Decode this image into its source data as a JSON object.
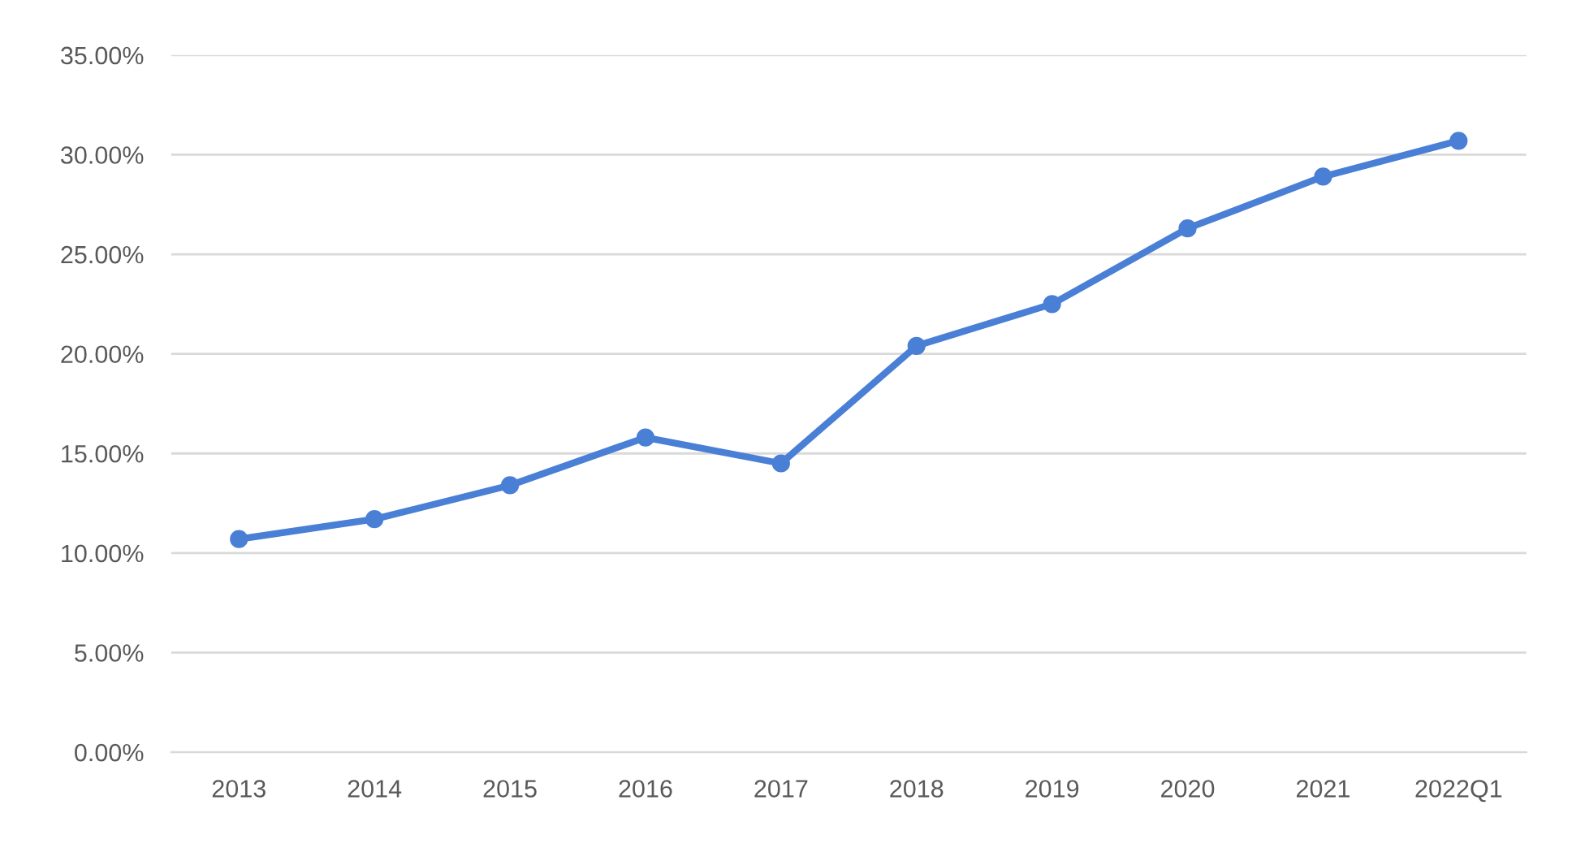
{
  "chart_data": {
    "type": "line",
    "categories": [
      "2013",
      "2014",
      "2015",
      "2016",
      "2017",
      "2018",
      "2019",
      "2020",
      "2021",
      "2022Q1"
    ],
    "series": [
      {
        "color": "#4a7fd6",
        "values": [
          10.7,
          11.7,
          13.4,
          15.8,
          14.5,
          20.4,
          22.5,
          26.3,
          28.9,
          30.7
        ]
      }
    ],
    "ylim": [
      0,
      35
    ],
    "yticks": [
      {
        "value": 0,
        "label": "0.00%"
      },
      {
        "value": 5,
        "label": "5.00%"
      },
      {
        "value": 10,
        "label": "10.00%"
      },
      {
        "value": 15,
        "label": "15.00%"
      },
      {
        "value": 20,
        "label": "20.00%"
      },
      {
        "value": 25,
        "label": "25.00%"
      },
      {
        "value": 30,
        "label": "30.00%"
      },
      {
        "value": 35,
        "label": "35.00%"
      }
    ],
    "grid": "y",
    "marker": "circle",
    "line_style": "solid",
    "legend": false
  }
}
